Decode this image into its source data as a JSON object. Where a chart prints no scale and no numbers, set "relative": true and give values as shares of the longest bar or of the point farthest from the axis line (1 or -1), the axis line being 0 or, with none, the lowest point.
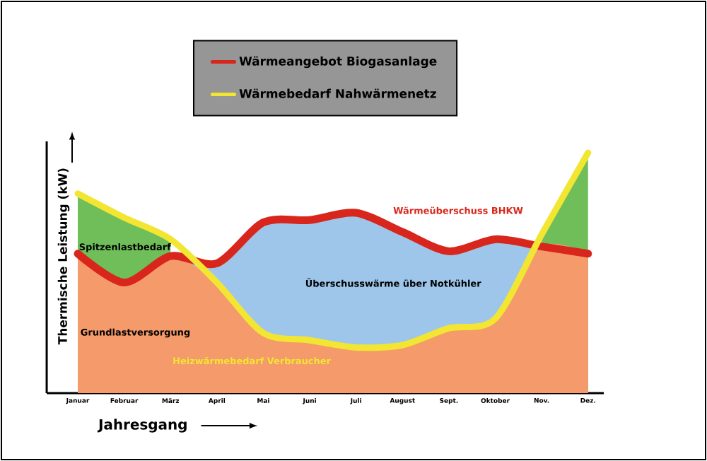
{
  "chart_data": {
    "type": "line",
    "relative": true,
    "xlabel": "Jahresgang",
    "ylabel": "Thermische Leistung (kW)",
    "categories": [
      "Januar",
      "Februar",
      "März",
      "April",
      "Mai",
      "Juni",
      "Juli",
      "August",
      "Sept.",
      "Oktober",
      "Nov.",
      "Dez."
    ],
    "series": [
      {
        "name": "Wärmeangebot Biogasanlage",
        "color": "#d9261c",
        "values": [
          0.58,
          0.46,
          0.57,
          0.54,
          0.71,
          0.72,
          0.75,
          0.67,
          0.59,
          0.64,
          0.61,
          0.58
        ]
      },
      {
        "name": "Wärmebedarf Nahwärmenetz",
        "color": "#f2e632",
        "values": [
          0.83,
          0.73,
          0.64,
          0.46,
          0.25,
          0.22,
          0.19,
          0.2,
          0.27,
          0.31,
          0.66,
          1.0
        ]
      },
      {
        "name": "Spitzenlastbedarf",
        "type": "area",
        "color": "#70be5a",
        "values": [
          0.83,
          0.73,
          0.64,
          null,
          null,
          null,
          null,
          null,
          null,
          null,
          0.66,
          1.0
        ]
      },
      {
        "name": "Überschusswärme über Notkühler",
        "type": "area",
        "color": "#9ec6ea",
        "values": [
          null,
          null,
          0.57,
          0.54,
          0.71,
          0.72,
          0.75,
          0.67,
          0.59,
          0.64,
          0.61,
          null
        ]
      },
      {
        "name": "Grundlastversorgung",
        "type": "area",
        "color": "#f59a6a",
        "values": [
          0.58,
          0.46,
          0.57,
          0.46,
          0.25,
          0.22,
          0.19,
          0.2,
          0.27,
          0.31,
          0.61,
          0.58
        ]
      }
    ],
    "annotations": [
      "Wärmeüberschuss BHKW",
      "Heizwärmebedarf Verbraucher"
    ],
    "legend": "top"
  }
}
